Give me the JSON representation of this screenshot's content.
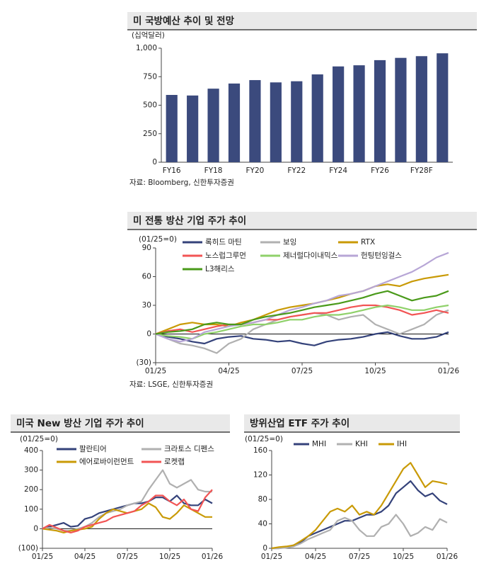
{
  "chart_data": [
    {
      "type": "bar",
      "title": "미 국방예산 추이 및 전망",
      "y_label": "(십억달러)",
      "source": "자료: Bloomberg, 신한투자증권",
      "categories": [
        "FY16",
        null,
        "FY18",
        null,
        "FY20",
        null,
        "FY22",
        null,
        "FY24",
        null,
        "FY26",
        null,
        "FY28F",
        null
      ],
      "values": [
        590,
        585,
        645,
        690,
        720,
        700,
        710,
        770,
        840,
        850,
        895,
        915,
        930,
        955
      ],
      "color": "#3b4a7d",
      "ylim": [
        0,
        1000
      ],
      "yticks": [
        0,
        250,
        500,
        750,
        {
          "value": 1000,
          "label": "1,000"
        }
      ]
    },
    {
      "type": "line",
      "title": "미 전통 방산 기업 주가 추이",
      "y_label": "(01/25=0)",
      "source": "자료: LSGE, 신한투자증권",
      "categories": [
        "01/25",
        null,
        null,
        null,
        null,
        null,
        "04/25",
        null,
        null,
        null,
        null,
        null,
        "07/25",
        null,
        null,
        null,
        null,
        null,
        "10/25",
        null,
        null,
        null,
        null,
        null,
        "01/26"
      ],
      "ylim": [
        -30,
        90
      ],
      "yticks": [
        {
          "value": -30,
          "label": "(30)"
        },
        0,
        30,
        60,
        90
      ],
      "series": [
        {
          "name": "록히드 마틴",
          "color": "#34427a",
          "values": [
            0,
            -3,
            -5,
            -8,
            -10,
            -5,
            -3,
            -2,
            -5,
            -6,
            -8,
            -7,
            -10,
            -12,
            -8,
            -6,
            -5,
            -3,
            0,
            2,
            -2,
            -5,
            -5,
            -3,
            2
          ]
        },
        {
          "name": "보잉",
          "color": "#b0b0b0",
          "values": [
            0,
            -5,
            -10,
            -12,
            -15,
            -20,
            -10,
            -5,
            5,
            10,
            15,
            18,
            20,
            22,
            20,
            15,
            18,
            20,
            10,
            5,
            0,
            5,
            10,
            20,
            25
          ]
        },
        {
          "name": "RTX",
          "color": "#c99a06",
          "values": [
            0,
            5,
            10,
            12,
            10,
            10,
            8,
            12,
            15,
            20,
            25,
            28,
            30,
            32,
            35,
            38,
            42,
            45,
            50,
            52,
            50,
            55,
            58,
            60,
            62
          ]
        },
        {
          "name": "노스럽그루먼",
          "color": "#f25454",
          "values": [
            0,
            3,
            5,
            2,
            5,
            8,
            10,
            10,
            12,
            15,
            15,
            18,
            20,
            22,
            22,
            25,
            28,
            30,
            30,
            28,
            25,
            20,
            22,
            25,
            22
          ]
        },
        {
          "name": "제너럴다이내믹스",
          "color": "#8fd16a",
          "values": [
            0,
            -2,
            -3,
            -5,
            0,
            2,
            5,
            8,
            10,
            10,
            12,
            15,
            15,
            18,
            20,
            20,
            22,
            25,
            28,
            30,
            28,
            25,
            25,
            28,
            30
          ]
        },
        {
          "name": "헌팅턴잉걸스",
          "color": "#b7a6d6",
          "values": [
            0,
            -5,
            -8,
            -5,
            2,
            5,
            8,
            10,
            12,
            15,
            20,
            25,
            28,
            32,
            35,
            40,
            42,
            45,
            50,
            55,
            60,
            65,
            72,
            80,
            85
          ]
        },
        {
          "name": "L3해리스",
          "color": "#4a9a1a",
          "values": [
            0,
            2,
            3,
            5,
            10,
            12,
            10,
            10,
            15,
            18,
            20,
            22,
            25,
            28,
            30,
            32,
            35,
            38,
            42,
            45,
            40,
            35,
            38,
            40,
            45
          ]
        }
      ]
    },
    {
      "type": "line",
      "title": "미국 New 방산 기업 주가 추이",
      "y_label": "(01/25=0)",
      "categories": [
        "01/25",
        null,
        null,
        null,
        null,
        null,
        "04/25",
        null,
        null,
        null,
        null,
        null,
        "07/25",
        null,
        null,
        null,
        null,
        null,
        "10/25",
        null,
        null,
        null,
        null,
        null,
        "01/26"
      ],
      "ylim": [
        -100,
        400
      ],
      "yticks": [
        {
          "value": -100,
          "label": "(100)"
        },
        0,
        100,
        200,
        300,
        400
      ],
      "series": [
        {
          "name": "팔란티어",
          "color": "#34427a",
          "values": [
            0,
            10,
            20,
            30,
            10,
            15,
            50,
            60,
            80,
            90,
            100,
            110,
            120,
            130,
            130,
            140,
            160,
            160,
            140,
            170,
            130,
            120,
            120,
            150,
            130
          ]
        },
        {
          "name": "크라토스 디펜스",
          "color": "#b0b0b0",
          "values": [
            0,
            5,
            0,
            -10,
            -10,
            0,
            10,
            30,
            60,
            80,
            90,
            100,
            120,
            130,
            140,
            200,
            250,
            300,
            230,
            210,
            230,
            250,
            200,
            190,
            190
          ]
        },
        {
          "name": "에어로바이런먼트",
          "color": "#c99a06",
          "values": [
            0,
            -5,
            -10,
            -20,
            -10,
            -5,
            0,
            10,
            50,
            80,
            100,
            90,
            80,
            90,
            100,
            130,
            110,
            60,
            50,
            80,
            120,
            100,
            80,
            60,
            60
          ]
        },
        {
          "name": "로켓랩",
          "color": "#f25454",
          "values": [
            0,
            20,
            5,
            -10,
            -20,
            -10,
            10,
            20,
            30,
            40,
            60,
            70,
            80,
            90,
            120,
            140,
            170,
            170,
            140,
            120,
            150,
            100,
            90,
            160,
            200
          ]
        }
      ]
    },
    {
      "type": "line",
      "title": "방위산업 ETF 주가 추이",
      "y_label": "(01/25=0)",
      "categories": [
        "01/25",
        null,
        null,
        null,
        null,
        null,
        "04/25",
        null,
        null,
        null,
        null,
        null,
        "07/25",
        null,
        null,
        null,
        null,
        null,
        "10/25",
        null,
        null,
        null,
        null,
        null,
        "01/26"
      ],
      "ylim": [
        0,
        160
      ],
      "yticks": [
        0,
        40,
        80,
        120,
        160
      ],
      "series": [
        {
          "name": "MHI",
          "color": "#34427a",
          "values": [
            0,
            0,
            2,
            5,
            10,
            20,
            25,
            30,
            35,
            40,
            45,
            45,
            50,
            55,
            55,
            60,
            70,
            90,
            100,
            110,
            95,
            85,
            90,
            78,
            72
          ]
        },
        {
          "name": "KHI",
          "color": "#b0b0b0",
          "values": [
            0,
            0,
            1,
            3,
            8,
            15,
            20,
            25,
            30,
            45,
            50,
            45,
            30,
            20,
            20,
            35,
            40,
            55,
            40,
            20,
            25,
            35,
            30,
            48,
            42
          ]
        },
        {
          "name": "IHI",
          "color": "#c99a06",
          "values": [
            0,
            2,
            3,
            5,
            12,
            20,
            30,
            45,
            60,
            65,
            60,
            70,
            55,
            60,
            55,
            70,
            90,
            110,
            130,
            140,
            120,
            100,
            110,
            108,
            105
          ]
        }
      ]
    }
  ]
}
